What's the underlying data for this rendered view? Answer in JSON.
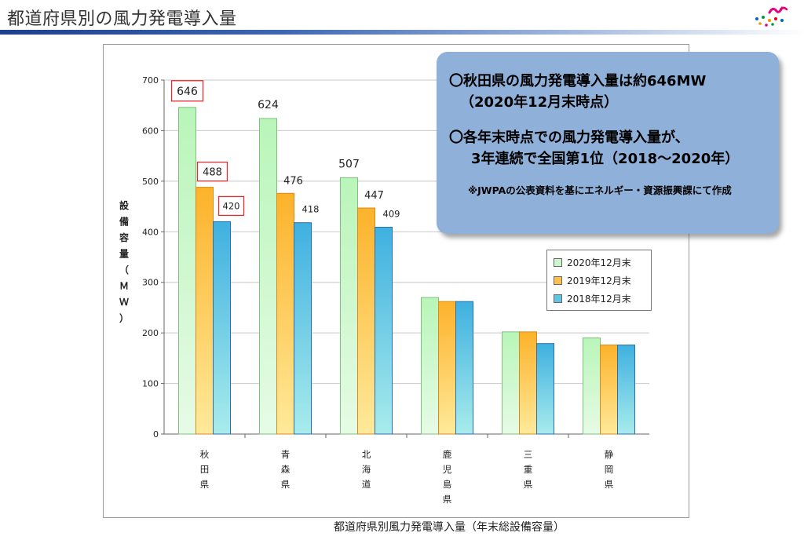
{
  "header": {
    "title": "都道府県別の風力発電導入量"
  },
  "callout": {
    "line1": "〇秋田県の風力発電導入量は約646MW",
    "line2": "（2020年12月末時点）",
    "line3": "〇各年末時点での風力発電導入量が、",
    "line4": "3年連続で全国第1位（2018〜2020年）",
    "note": "※JWPAの公表資料を基にエネルギー・資源振興課にて作成"
  },
  "legend": {
    "items": [
      {
        "label": "2020年12月末",
        "color": "#ccf7cc"
      },
      {
        "label": "2019年12月末",
        "color": "#fdc04e"
      },
      {
        "label": "2018年12月末",
        "color": "#5fc5e3"
      }
    ]
  },
  "caption": "都道府県別風力発電導入量（年末総設備容量）",
  "chart_data": {
    "type": "bar",
    "ylabel": "設備容量（ＭＷ）",
    "ylim": [
      0,
      700
    ],
    "yticks": [
      0,
      100,
      200,
      300,
      400,
      500,
      600,
      700
    ],
    "grid": true,
    "legend_position": "right",
    "categories": [
      "秋田県",
      "青森県",
      "北海道",
      "鹿児島県",
      "三重県",
      "静岡県"
    ],
    "series": [
      {
        "name": "2020年12月末",
        "values": [
          646,
          624,
          507,
          270,
          202,
          190
        ]
      },
      {
        "name": "2019年12月末",
        "values": [
          488,
          476,
          447,
          262,
          202,
          176
        ]
      },
      {
        "name": "2018年12月末",
        "values": [
          420,
          418,
          409,
          262,
          179,
          176
        ]
      }
    ],
    "data_labels": [
      {
        "category": "秋田県",
        "series": "2020年12月末",
        "text": "646",
        "boxed": true
      },
      {
        "category": "秋田県",
        "series": "2019年12月末",
        "text": "488",
        "boxed": true
      },
      {
        "category": "秋田県",
        "series": "2018年12月末",
        "text": "420",
        "boxed": true
      },
      {
        "category": "青森県",
        "series": "2020年12月末",
        "text": "624",
        "boxed": false
      },
      {
        "category": "青森県",
        "series": "2019年12月末",
        "text": "476",
        "boxed": false
      },
      {
        "category": "青森県",
        "series": "2018年12月末",
        "text": "418",
        "boxed": false
      },
      {
        "category": "北海道",
        "series": "2020年12月末",
        "text": "507",
        "boxed": false
      },
      {
        "category": "北海道",
        "series": "2019年12月末",
        "text": "447",
        "boxed": false
      },
      {
        "category": "北海道",
        "series": "2018年12月末",
        "text": "409",
        "boxed": false
      }
    ]
  }
}
